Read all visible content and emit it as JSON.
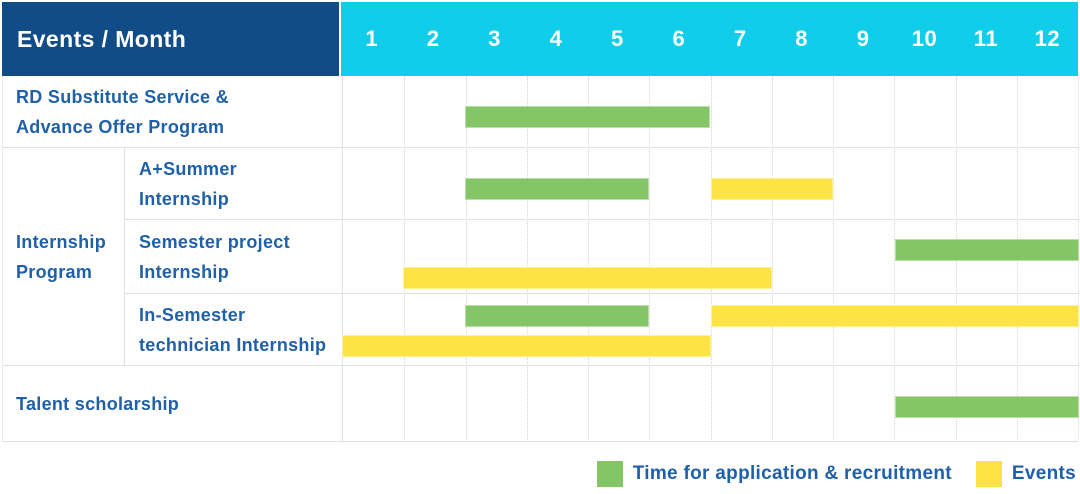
{
  "header": {
    "title": "Events / Month",
    "months": [
      "1",
      "2",
      "3",
      "4",
      "5",
      "6",
      "7",
      "8",
      "9",
      "10",
      "11",
      "12"
    ]
  },
  "legend": {
    "items": [
      {
        "label": "Time for application & recruitment",
        "color": "#84c566"
      },
      {
        "label": "Events",
        "color": "#fee344"
      }
    ]
  },
  "colors": {
    "header_bg": "#114c87",
    "month_header_bg": "#10cdea",
    "green": "#84c566",
    "yellow": "#fee344",
    "label_text": "#1f60a8",
    "grid": "#e0e0e0"
  },
  "chart_data": {
    "type": "gantt",
    "title": "Events / Month",
    "x_axis": {
      "label": "Month",
      "ticks": [
        1,
        2,
        3,
        4,
        5,
        6,
        7,
        8,
        9,
        10,
        11,
        12
      ],
      "range": [
        1,
        12
      ],
      "grid": "dotted-vertical"
    },
    "legend_position": "bottom-right",
    "groups": [
      {
        "label": "Internship Program",
        "lines": [
          "Internship",
          "Program"
        ],
        "row_indexes": [
          1,
          2,
          3
        ]
      }
    ],
    "rows": [
      {
        "label": "RD Substitute Service & Advance Offer Program",
        "label_lines": [
          "RD Substitute Service &",
          "Advance Offer Program"
        ],
        "bars": [
          {
            "series": "Time for application & recruitment",
            "start_month": 3,
            "end_month": 6,
            "line": 0
          }
        ]
      },
      {
        "label": "A+Summer Internship",
        "label_lines": [
          "A+Summer",
          "Internship"
        ],
        "group": "Internship Program",
        "bars": [
          {
            "series": "Time for application & recruitment",
            "start_month": 3,
            "end_month": 5,
            "line": 0
          },
          {
            "series": "Events",
            "start_month": 7,
            "end_month": 8,
            "line": 0
          }
        ]
      },
      {
        "label": "Semester project Internship",
        "label_lines": [
          "Semester project",
          "Internship"
        ],
        "group": "Internship Program",
        "bars": [
          {
            "series": "Time for application & recruitment",
            "start_month": 10,
            "end_month": 12,
            "line": 0
          },
          {
            "series": "Events",
            "start_month": 2,
            "end_month": 7,
            "line": 1
          }
        ]
      },
      {
        "label": "In-Semester technician Internship",
        "label_lines": [
          "In-Semester",
          "technician Internship"
        ],
        "group": "Internship Program",
        "bars": [
          {
            "series": "Time for application & recruitment",
            "start_month": 3,
            "end_month": 5,
            "line": 0
          },
          {
            "series": "Events",
            "start_month": 7,
            "end_month": 12,
            "line": 0
          },
          {
            "series": "Events",
            "start_month": 1,
            "end_month": 6,
            "line": 1
          }
        ]
      },
      {
        "label": "Talent scholarship",
        "label_lines": [
          "Talent scholarship"
        ],
        "bars": [
          {
            "series": "Time for application & recruitment",
            "start_month": 10,
            "end_month": 12,
            "line": 0
          }
        ]
      }
    ]
  }
}
